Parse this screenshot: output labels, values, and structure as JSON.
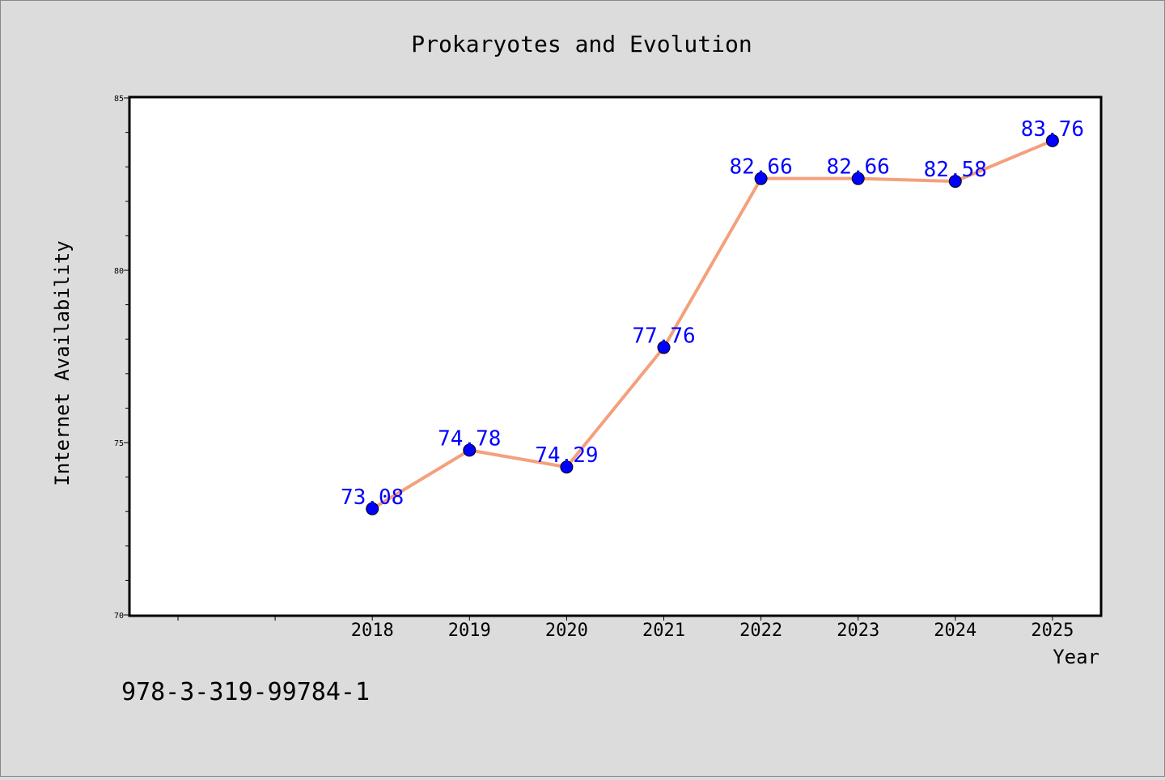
{
  "chart_data": {
    "type": "line",
    "title": "Prokaryotes and Evolution",
    "xlabel": "Year",
    "ylabel": "Internet Availability",
    "categories": [
      "2018",
      "2019",
      "2020",
      "2021",
      "2022",
      "2023",
      "2024",
      "2025"
    ],
    "series": [
      {
        "values": [
          73.08,
          74.78,
          74.29,
          77.76,
          82.66,
          82.66,
          82.58,
          83.76
        ],
        "line_color": "#f4a07c",
        "marker_color": "#0000ff"
      }
    ],
    "data_labels": [
      "73.08",
      "74.78",
      "74.29",
      "77.76",
      "82.66",
      "82.66",
      "82.58",
      "83.76"
    ],
    "ylim": [
      70,
      85
    ],
    "yticks": [
      "70",
      "75",
      "80",
      "85"
    ],
    "grid": false,
    "legend": "none"
  },
  "footer": {
    "isbn": "978-3-319-99784-1"
  }
}
